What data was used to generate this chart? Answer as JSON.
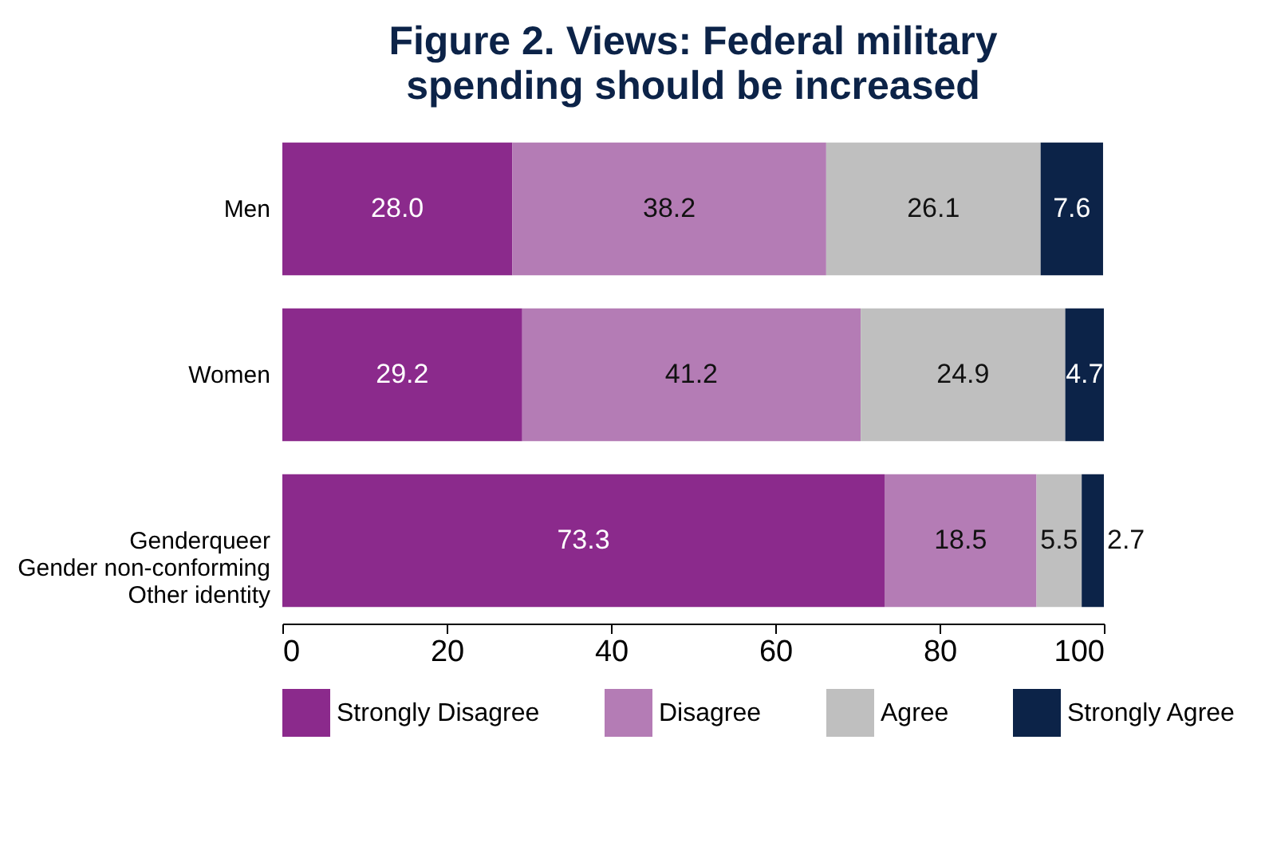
{
  "chart_data": {
    "type": "bar",
    "orientation": "horizontal",
    "stacked": true,
    "title": "Figure 2. Views: Federal military\nspending should be increased",
    "categories": [
      "Men",
      "Women",
      "Genderqueer\nGender non-conforming\nOther identity"
    ],
    "series": [
      {
        "name": "Strongly Disagree",
        "color": "#8b2a8c",
        "values": [
          28.0,
          29.2,
          73.3
        ],
        "value_labels": [
          "28.0",
          "29.2",
          "73.3"
        ]
      },
      {
        "name": "Disagree",
        "color": "#b47cb5",
        "values": [
          38.2,
          41.2,
          18.5
        ],
        "value_labels": [
          "38.2",
          "41.2",
          "18.5"
        ]
      },
      {
        "name": "Agree",
        "color": "#bfbfbf",
        "values": [
          26.1,
          24.9,
          5.5
        ],
        "value_labels": [
          "26.1",
          "24.9",
          "5.5"
        ]
      },
      {
        "name": "Strongly Agree",
        "color": "#0c2348",
        "values": [
          7.6,
          4.7,
          2.7
        ],
        "value_labels": [
          "7.6",
          "4.7",
          "2.7"
        ]
      }
    ],
    "xlim": [
      0,
      100
    ],
    "xticks": [
      0,
      20,
      40,
      60,
      80,
      100
    ],
    "grid": false,
    "legend": "bottom"
  }
}
